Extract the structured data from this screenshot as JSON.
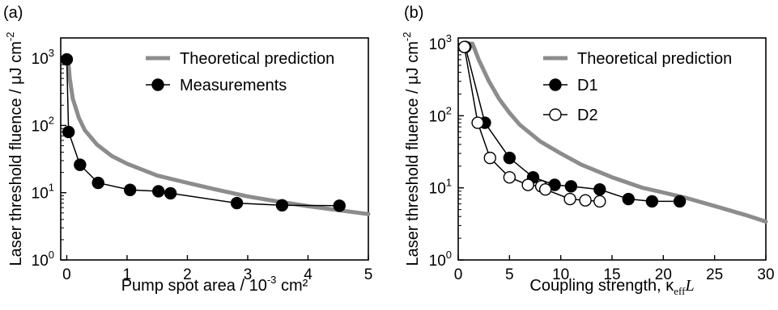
{
  "chart_data": [
    {
      "panel_label": "(a)",
      "type": "line",
      "xlabel": "Pump spot area / 10",
      "xlabel_exp": "-3",
      "xlabel_tail": " cm²",
      "ylabel": "Laser threshold fluence / μJ cm",
      "ylabel_exp": "-2",
      "y_scale": "log",
      "xlim": [
        -0.1,
        5
      ],
      "ylim": [
        1,
        2000
      ],
      "x_ticks": [
        "0",
        "1",
        "2",
        "3",
        "4",
        "5"
      ],
      "x_tick_values": [
        0,
        1,
        2,
        3,
        4,
        5
      ],
      "y_ticks": [
        {
          "value": 1,
          "base": "10",
          "exp": "0"
        },
        {
          "value": 10,
          "base": "10",
          "exp": "1"
        },
        {
          "value": 100,
          "base": "10",
          "exp": "2"
        },
        {
          "value": 1000,
          "base": "10",
          "exp": "3"
        }
      ],
      "grid": false,
      "legend_position": "top-right",
      "series": [
        {
          "name": "Theoretical prediction",
          "style": "theory",
          "color": "#8c8c8c",
          "x": [
            0.02,
            0.05,
            0.1,
            0.2,
            0.3,
            0.5,
            0.75,
            1.0,
            1.5,
            2.0,
            2.5,
            3.0,
            3.5,
            4.0,
            4.5,
            5.0
          ],
          "y": [
            1000,
            500,
            250,
            130,
            85,
            52,
            35,
            27,
            18,
            14,
            11,
            8.8,
            7.4,
            6.3,
            5.5,
            4.8
          ]
        },
        {
          "name": "Measurements",
          "style": "filled",
          "color": "#000000",
          "x": [
            0.0,
            0.03,
            0.22,
            0.52,
            1.05,
            1.52,
            1.72,
            2.82,
            3.57,
            4.52
          ],
          "y": [
            960,
            80,
            26,
            14,
            11,
            10.5,
            9.8,
            7.0,
            6.5,
            6.4
          ]
        }
      ]
    },
    {
      "panel_label": "(b)",
      "type": "line",
      "xlabel": "Coupling strength, κ",
      "xlabel_sub": "eff",
      "xlabel_tail": "L",
      "ylabel": "Laser threshold fluence / μJ cm",
      "ylabel_exp": "-2",
      "y_scale": "log",
      "xlim": [
        0,
        30
      ],
      "ylim": [
        1,
        1200
      ],
      "x_ticks": [
        "0",
        "5",
        "10",
        "15",
        "20",
        "25",
        "30"
      ],
      "x_tick_values": [
        0,
        5,
        10,
        15,
        20,
        25,
        30
      ],
      "y_ticks": [
        {
          "value": 1,
          "base": "10",
          "exp": "0"
        },
        {
          "value": 10,
          "base": "10",
          "exp": "1"
        },
        {
          "value": 100,
          "base": "10",
          "exp": "2"
        },
        {
          "value": 1000,
          "base": "10",
          "exp": "3"
        }
      ],
      "grid": false,
      "legend_position": "top-right",
      "series": [
        {
          "name": "Theoretical prediction",
          "style": "theory",
          "color": "#8c8c8c",
          "x": [
            1.0,
            1.4,
            2,
            3,
            4,
            5,
            6,
            8,
            10,
            12,
            15,
            18,
            20,
            22,
            25,
            28,
            30
          ],
          "y": [
            1000,
            1000,
            600,
            300,
            170,
            110,
            75,
            44,
            30,
            21,
            14,
            10,
            8.6,
            7.4,
            5.6,
            4.2,
            3.4
          ]
        },
        {
          "name": "D1",
          "style": "filled",
          "color": "#000000",
          "x": [
            0.7,
            2.6,
            5.0,
            7.3,
            9.4,
            11.0,
            13.8,
            16.6,
            18.9,
            21.6
          ],
          "y": [
            900,
            80,
            26,
            14,
            11,
            10.5,
            9.5,
            7.0,
            6.5,
            6.5
          ]
        },
        {
          "name": "D2",
          "style": "open",
          "color": "#000000",
          "x": [
            0.6,
            1.9,
            3.1,
            5.0,
            6.8,
            8.1,
            8.5,
            10.9,
            12.4,
            13.8
          ],
          "y": [
            900,
            80,
            26,
            14,
            11,
            10.5,
            9.5,
            7.0,
            6.7,
            6.5
          ]
        }
      ]
    }
  ]
}
